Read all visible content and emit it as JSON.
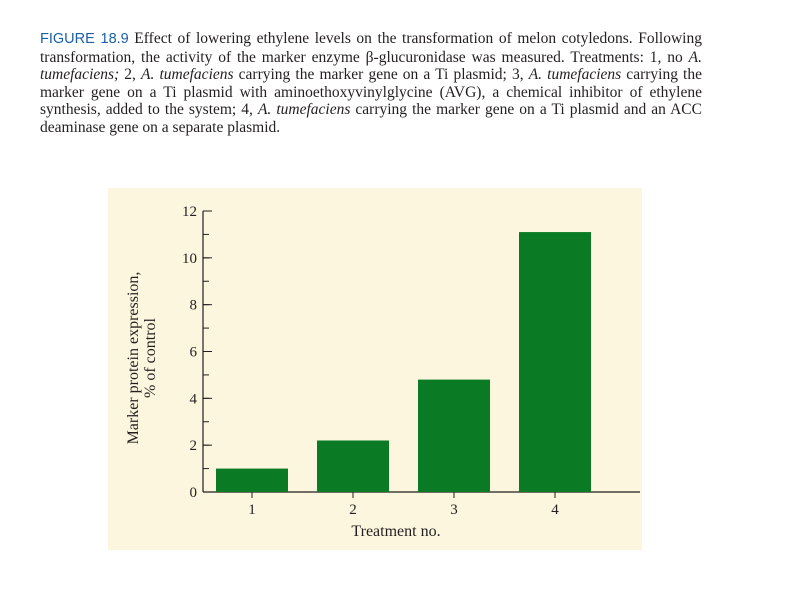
{
  "caption": {
    "label": "FIGURE 18.9",
    "segments": [
      {
        "text": " Effect of lowering ethylene levels on the transformation of melon coty­ledons. Following transformation, the activity of the marker enzyme β-glucuronidase was measured. Treatments: 1, no ",
        "italic": false
      },
      {
        "text": "A. tumefaciens;",
        "italic": true
      },
      {
        "text": " 2, ",
        "italic": false
      },
      {
        "text": "A. tumefaciens",
        "italic": true
      },
      {
        "text": " carrying the marker gene on a Ti plasmid; 3, ",
        "italic": false
      },
      {
        "text": "A. tumefaciens",
        "italic": true
      },
      {
        "text": " carrying the marker gene on a Ti plasmid with aminoethoxyvinylglycine (AVG), a chemical inhibitor of ethylene synthesis, added to the system; 4, ",
        "italic": false
      },
      {
        "text": "A. tumefaciens",
        "italic": true
      },
      {
        "text": " carrying the marker gene on a Ti plasmid and an ACC deaminase gene on a separate plasmid.",
        "italic": false
      }
    ]
  },
  "chart_data": {
    "type": "bar",
    "categories": [
      "1",
      "2",
      "3",
      "4"
    ],
    "values": [
      1.0,
      2.2,
      4.8,
      11.1
    ],
    "xlabel": "Treatment no.",
    "ylabel": [
      "Marker protein expression,",
      "% of control"
    ],
    "ylim": [
      0,
      12
    ],
    "yticks": [
      0,
      2,
      4,
      6,
      8,
      10,
      12
    ],
    "yminor_step": 1,
    "grid": false,
    "colors": {
      "bar": "#0a7a25",
      "panel": "#fbf6dd",
      "axis": "#231f20",
      "label_blue": "#1a5fa8"
    }
  }
}
